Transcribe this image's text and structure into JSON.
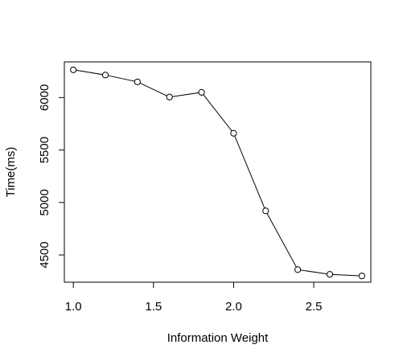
{
  "chart_data": {
    "type": "line",
    "title": "",
    "xlabel": "Information Weight",
    "ylabel": "Time(ms)",
    "x_ticks": [
      "1.0",
      "1.5",
      "2.0",
      "2.5"
    ],
    "y_ticks": [
      "4500",
      "5000",
      "5500",
      "6000"
    ],
    "xlim": [
      0.944,
      2.856
    ],
    "ylim": [
      4240,
      6340
    ],
    "grid": false,
    "legend": "none",
    "marker": "open-circle",
    "line_color": "#000000",
    "series": [
      {
        "x": [
          1.0,
          1.2,
          1.4,
          1.6,
          1.8,
          2.0,
          2.2,
          2.4,
          2.6,
          2.8
        ],
        "y": [
          6265,
          6215,
          6150,
          6005,
          6050,
          5660,
          4920,
          4360,
          4315,
          4300
        ]
      }
    ]
  }
}
